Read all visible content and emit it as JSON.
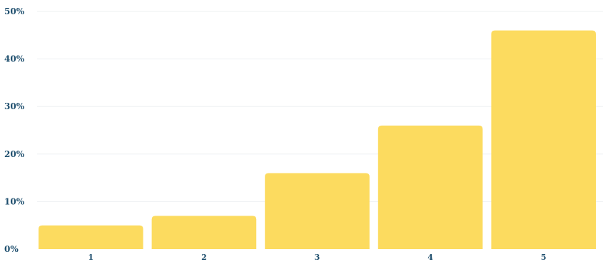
{
  "chart_data": {
    "type": "bar",
    "categories": [
      "1",
      "2",
      "3",
      "4",
      "5"
    ],
    "values": [
      5,
      7,
      16,
      26,
      46
    ],
    "y_ticks": [
      "0%",
      "10%",
      "20%",
      "30%",
      "40%",
      "50%"
    ],
    "ylim": [
      0,
      50
    ],
    "title": "",
    "xlabel": "",
    "ylabel": "",
    "grid": true,
    "bar_color": "#fcdb5f",
    "tick_color": "#1f4f6e"
  }
}
